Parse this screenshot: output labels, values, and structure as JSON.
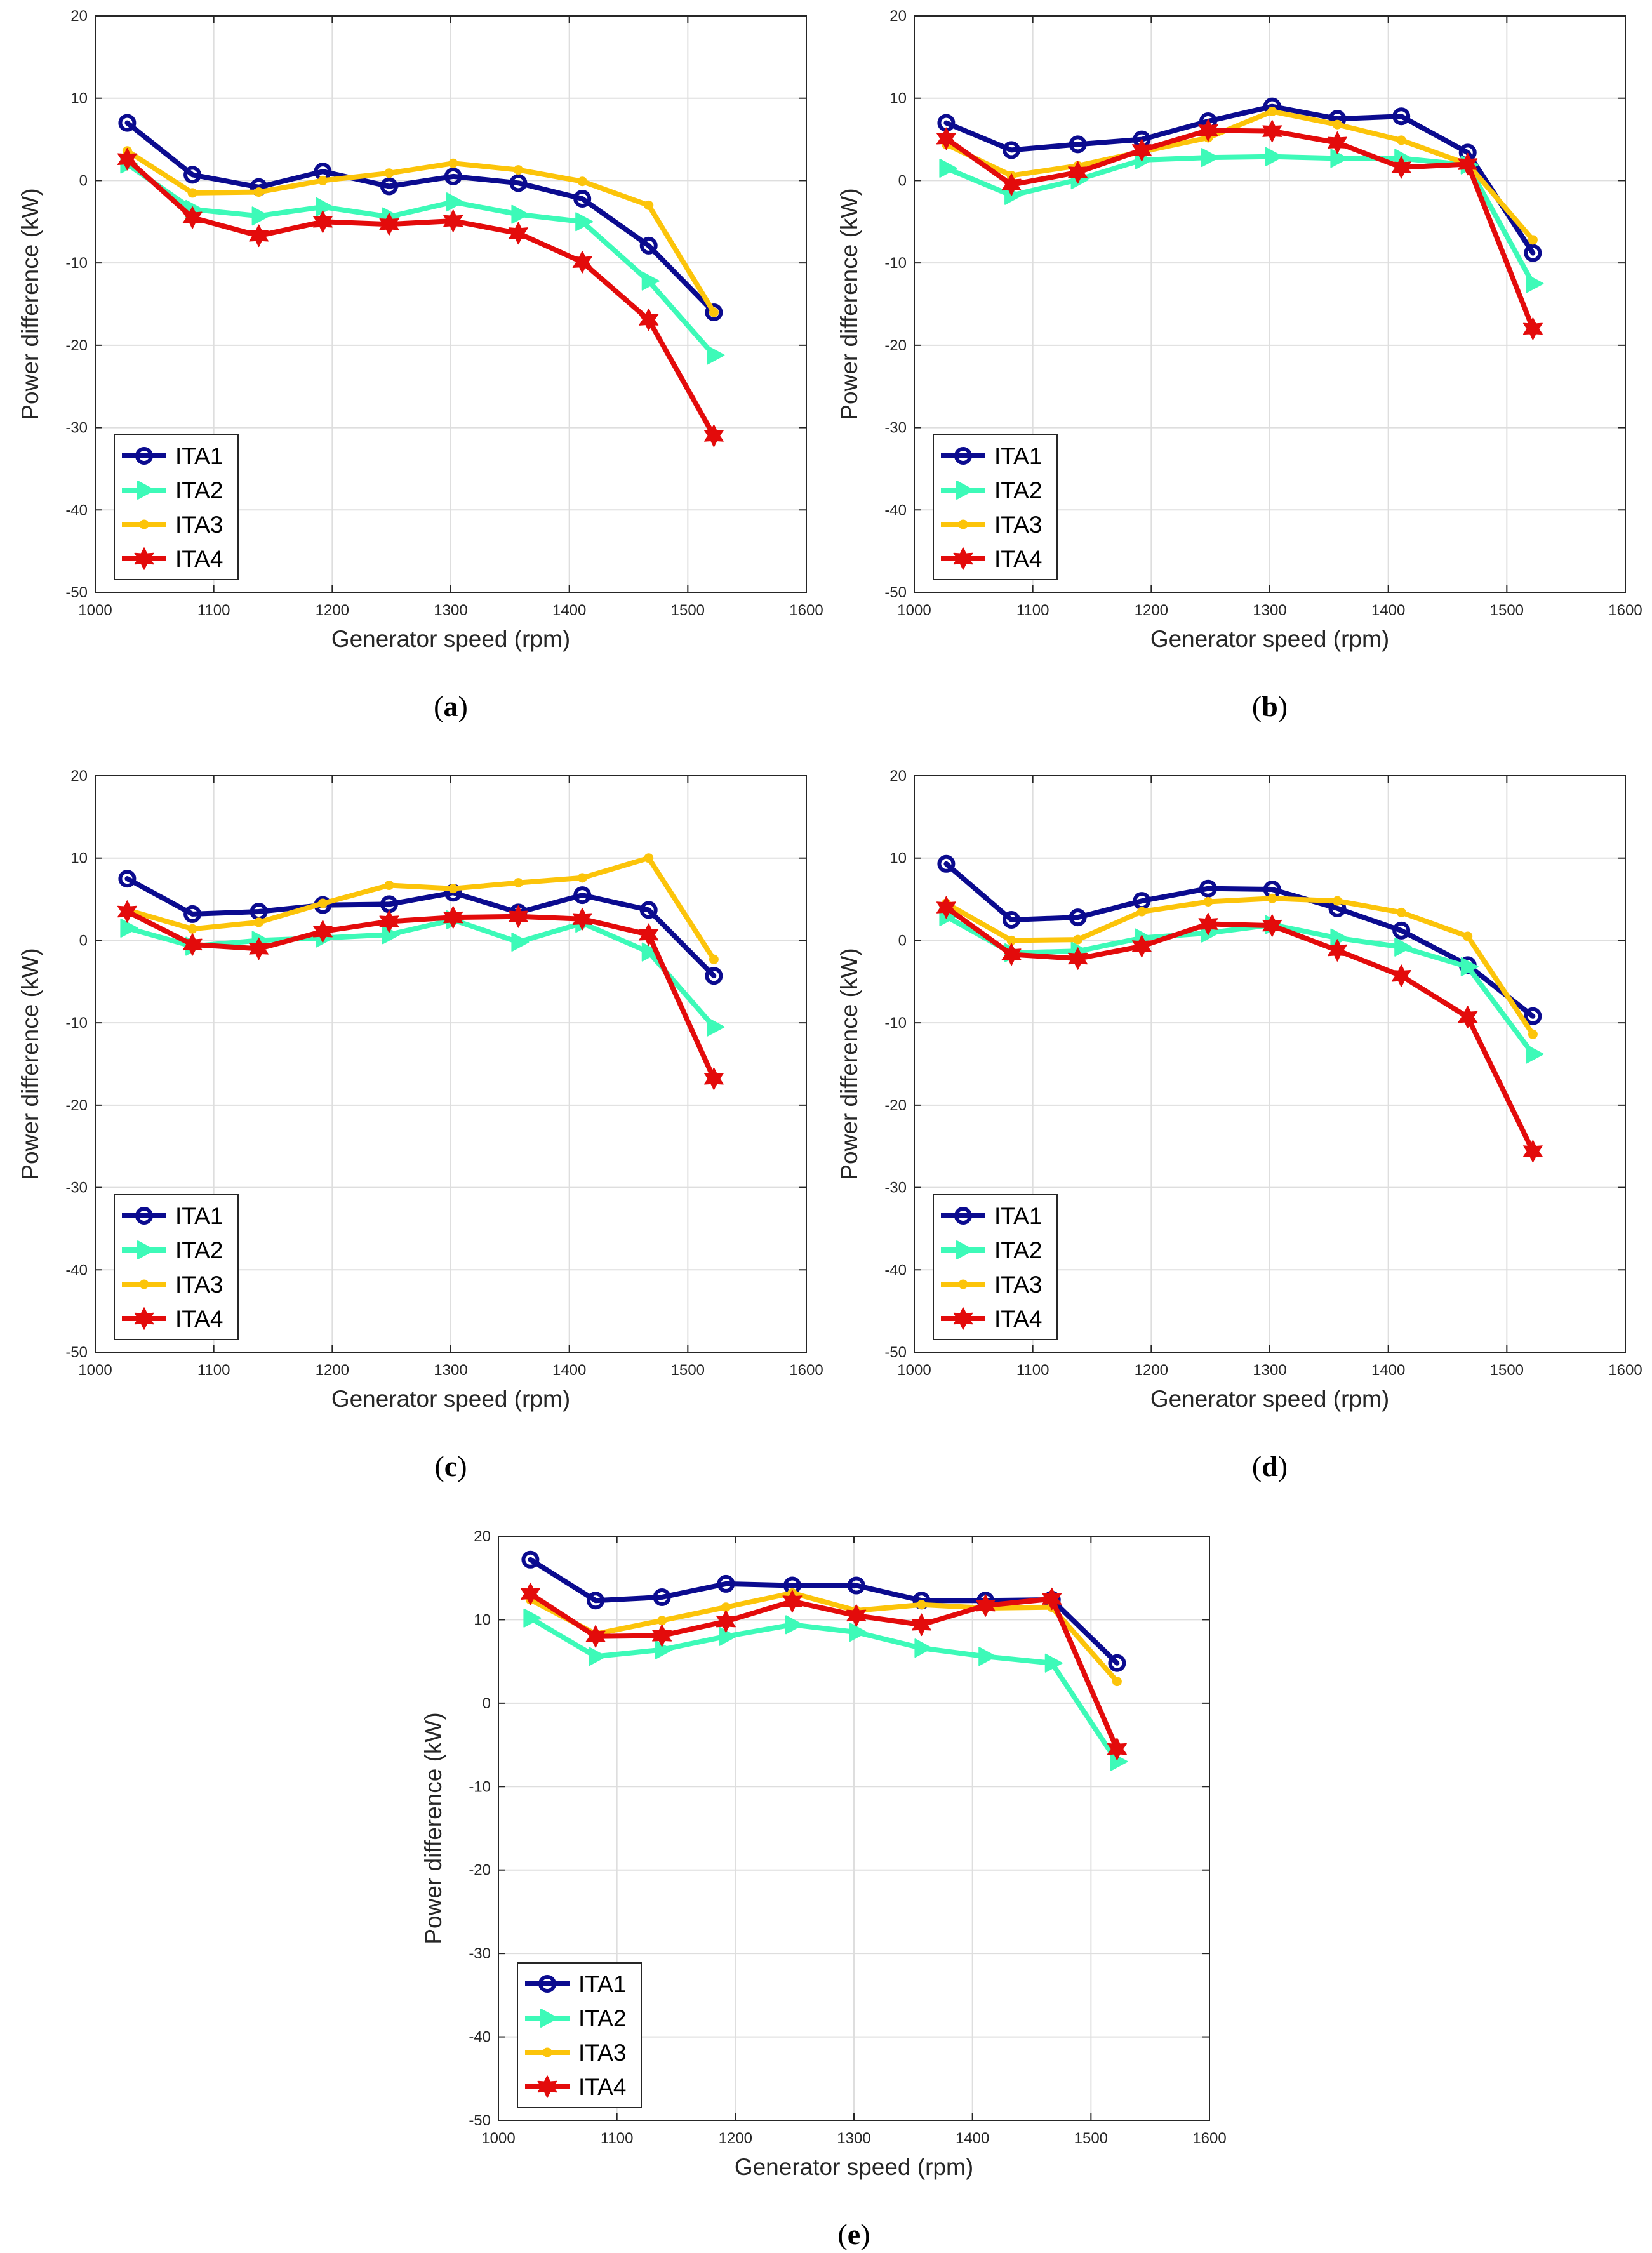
{
  "figure": {
    "panels": [
      "(a)",
      "(b)",
      "(c)",
      "(d)",
      "(e)"
    ]
  },
  "series_styles": [
    {
      "name": "ITA1",
      "color": "#0b0b8f",
      "marker": "circle"
    },
    {
      "name": "ITA2",
      "color": "#3dfab8",
      "marker": "triangle-right"
    },
    {
      "name": "ITA3",
      "color": "#fcc40a",
      "marker": "dot"
    },
    {
      "name": "ITA4",
      "color": "#e30b0b",
      "marker": "hexagram"
    }
  ],
  "chart_data": [
    {
      "panel": "a",
      "caption_letter": "a",
      "caption_open": "(",
      "caption_close": ")",
      "type": "line",
      "xlabel": "Generator speed (rpm)",
      "ylabel": "Power difference (kW)",
      "xlim": [
        1000,
        1600
      ],
      "ylim": [
        -50,
        20
      ],
      "xticks": [
        1000,
        1100,
        1200,
        1300,
        1400,
        1500,
        1600
      ],
      "yticks": [
        -50,
        -40,
        -30,
        -20,
        -10,
        0,
        10,
        20
      ],
      "grid": true,
      "legend": "bottom-left",
      "x": [
        1027,
        1082,
        1138,
        1192,
        1248,
        1302,
        1357,
        1411,
        1467,
        1522
      ],
      "series": [
        {
          "name": "ITA1",
          "values": [
            7,
            0.7,
            -0.8,
            1.1,
            -0.7,
            0.5,
            -0.3,
            -2.2,
            -7.9,
            -16
          ]
        },
        {
          "name": "ITA2",
          "values": [
            2,
            -3.5,
            -4.3,
            -3.2,
            -4.4,
            -2.6,
            -4.1,
            -5,
            -12.2,
            -21.2
          ]
        },
        {
          "name": "ITA3",
          "values": [
            3.6,
            -1.5,
            -1.4,
            0,
            0.9,
            2.1,
            1.3,
            -0.1,
            -3,
            -16
          ]
        },
        {
          "name": "ITA4",
          "values": [
            2.6,
            -4.5,
            -6.7,
            -5,
            -5.3,
            -4.9,
            -6.4,
            -9.9,
            -16.9,
            -31
          ]
        }
      ]
    },
    {
      "panel": "b",
      "caption_letter": "b",
      "caption_open": "(",
      "caption_close": ")",
      "type": "line",
      "xlabel": "Generator speed (rpm)",
      "ylabel": "Power difference (kW)",
      "xlim": [
        1000,
        1600
      ],
      "ylim": [
        -50,
        20
      ],
      "xticks": [
        1000,
        1100,
        1200,
        1300,
        1400,
        1500,
        1600
      ],
      "yticks": [
        -50,
        -40,
        -30,
        -20,
        -10,
        0,
        10,
        20
      ],
      "grid": true,
      "legend": "bottom-left",
      "x": [
        1027,
        1082,
        1138,
        1192,
        1248,
        1302,
        1357,
        1411,
        1467,
        1522
      ],
      "series": [
        {
          "name": "ITA1",
          "values": [
            7,
            3.7,
            4.4,
            5,
            7.2,
            9,
            7.5,
            7.8,
            3.4,
            -8.8
          ]
        },
        {
          "name": "ITA2",
          "values": [
            1.5,
            -1.8,
            0.1,
            2.5,
            2.8,
            2.9,
            2.7,
            2.7,
            1.9,
            -12.5
          ]
        },
        {
          "name": "ITA3",
          "values": [
            4.4,
            0.6,
            1.8,
            3.5,
            5.2,
            8.4,
            6.8,
            4.9,
            2,
            -7.2
          ]
        },
        {
          "name": "ITA4",
          "values": [
            5.1,
            -0.5,
            1,
            3.7,
            6.1,
            6,
            4.6,
            1.6,
            2,
            -18
          ]
        }
      ]
    },
    {
      "panel": "c",
      "caption_letter": "c",
      "caption_open": "(",
      "caption_close": ")",
      "type": "line",
      "xlabel": "Generator speed (rpm)",
      "ylabel": "Power difference (kW)",
      "xlim": [
        1000,
        1600
      ],
      "ylim": [
        -50,
        20
      ],
      "xticks": [
        1000,
        1100,
        1200,
        1300,
        1400,
        1500,
        1600
      ],
      "yticks": [
        -50,
        -40,
        -30,
        -20,
        -10,
        0,
        10,
        20
      ],
      "grid": true,
      "legend": "bottom-left",
      "x": [
        1027,
        1082,
        1138,
        1192,
        1248,
        1302,
        1357,
        1411,
        1467,
        1522
      ],
      "series": [
        {
          "name": "ITA1",
          "values": [
            7.5,
            3.2,
            3.5,
            4.3,
            4.4,
            5.8,
            3.4,
            5.5,
            3.7,
            -4.3
          ]
        },
        {
          "name": "ITA2",
          "values": [
            1.5,
            -0.7,
            0,
            0.3,
            0.7,
            2.5,
            -0.2,
            2.1,
            -1.4,
            -10.5
          ]
        },
        {
          "name": "ITA3",
          "values": [
            3.7,
            1.4,
            2.2,
            4.5,
            6.7,
            6.3,
            7,
            7.6,
            10,
            -2.3
          ]
        },
        {
          "name": "ITA4",
          "values": [
            3.5,
            -0.5,
            -1,
            1.1,
            2.3,
            2.8,
            2.9,
            2.6,
            0.7,
            -16.8
          ]
        }
      ]
    },
    {
      "panel": "d",
      "caption_letter": "d",
      "caption_open": "(",
      "caption_close": ")",
      "type": "line",
      "xlabel": "Generator speed (rpm)",
      "ylabel": "Power difference (kW)",
      "xlim": [
        1000,
        1600
      ],
      "ylim": [
        -50,
        20
      ],
      "xticks": [
        1000,
        1100,
        1200,
        1300,
        1400,
        1500,
        1600
      ],
      "yticks": [
        -50,
        -40,
        -30,
        -20,
        -10,
        0,
        10,
        20
      ],
      "grid": true,
      "legend": "bottom-left",
      "x": [
        1027,
        1082,
        1138,
        1192,
        1248,
        1302,
        1357,
        1411,
        1467,
        1522
      ],
      "series": [
        {
          "name": "ITA1",
          "values": [
            9.3,
            2.5,
            2.8,
            4.8,
            6.3,
            6.2,
            3.9,
            1.2,
            -3,
            -9.2
          ]
        },
        {
          "name": "ITA2",
          "values": [
            2.9,
            -1.5,
            -1.3,
            0.3,
            0.9,
            1.9,
            0.3,
            -0.8,
            -3.2,
            -13.8
          ]
        },
        {
          "name": "ITA3",
          "values": [
            4.5,
            0,
            0.1,
            3.5,
            4.7,
            5.1,
            4.8,
            3.4,
            0.5,
            -11.4
          ]
        },
        {
          "name": "ITA4",
          "values": [
            4,
            -1.7,
            -2.2,
            -0.7,
            2,
            1.8,
            -1.2,
            -4.3,
            -9.3,
            -25.6
          ]
        }
      ]
    },
    {
      "panel": "e",
      "caption_letter": "e",
      "caption_open": "(",
      "caption_close": ")",
      "type": "line",
      "xlabel": "Generator speed (rpm)",
      "ylabel": "Power difference (kW)",
      "xlim": [
        1000,
        1600
      ],
      "ylim": [
        -50,
        20
      ],
      "xticks": [
        1000,
        1100,
        1200,
        1300,
        1400,
        1500,
        1600
      ],
      "yticks": [
        -50,
        -40,
        -30,
        -20,
        -10,
        0,
        10,
        20
      ],
      "grid": true,
      "legend": "bottom-left",
      "x": [
        1027,
        1082,
        1138,
        1192,
        1248,
        1302,
        1357,
        1411,
        1467,
        1522
      ],
      "series": [
        {
          "name": "ITA1",
          "values": [
            17.2,
            12.3,
            12.7,
            14.3,
            14.1,
            14.1,
            12.3,
            12.3,
            12.4,
            4.8
          ]
        },
        {
          "name": "ITA2",
          "values": [
            10.2,
            5.6,
            6.4,
            8,
            9.4,
            8.5,
            6.6,
            5.6,
            4.8,
            -7
          ]
        },
        {
          "name": "ITA3",
          "values": [
            12.4,
            8.3,
            9.9,
            11.5,
            13.2,
            11.1,
            11.8,
            11.4,
            11.5,
            2.6
          ]
        },
        {
          "name": "ITA4",
          "values": [
            13.1,
            8,
            8.1,
            9.8,
            12.2,
            10.5,
            9.4,
            11.7,
            12.5,
            -5.5
          ]
        }
      ]
    }
  ]
}
